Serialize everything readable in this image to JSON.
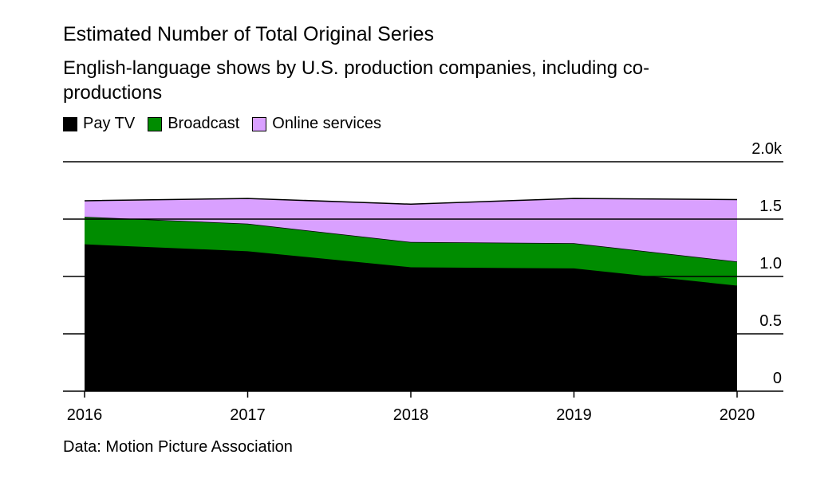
{
  "chart_data": {
    "type": "stacked-area",
    "title": "Estimated Number of Total Original Series",
    "subtitle": "English-language shows by U.S. production companies, including co-productions",
    "source": "Data: Motion Picture Association",
    "categories": [
      "2016",
      "2017",
      "2018",
      "2019",
      "2020"
    ],
    "series": [
      {
        "name": "Pay TV",
        "color": "#000000",
        "values": [
          1.28,
          1.22,
          1.08,
          1.07,
          0.92
        ]
      },
      {
        "name": "Broadcast",
        "color": "#008c00",
        "values": [
          0.24,
          0.24,
          0.22,
          0.22,
          0.21
        ]
      },
      {
        "name": "Online services",
        "color": "#d9a0ff",
        "values": [
          0.14,
          0.22,
          0.33,
          0.39,
          0.54
        ]
      }
    ],
    "ylim": [
      0,
      2
    ],
    "yticks": [
      0,
      0.5,
      {
        "value": 1,
        "label": "1.0"
      },
      1.5,
      {
        "value": 2,
        "label": "2.0k"
      }
    ],
    "grid": true
  }
}
